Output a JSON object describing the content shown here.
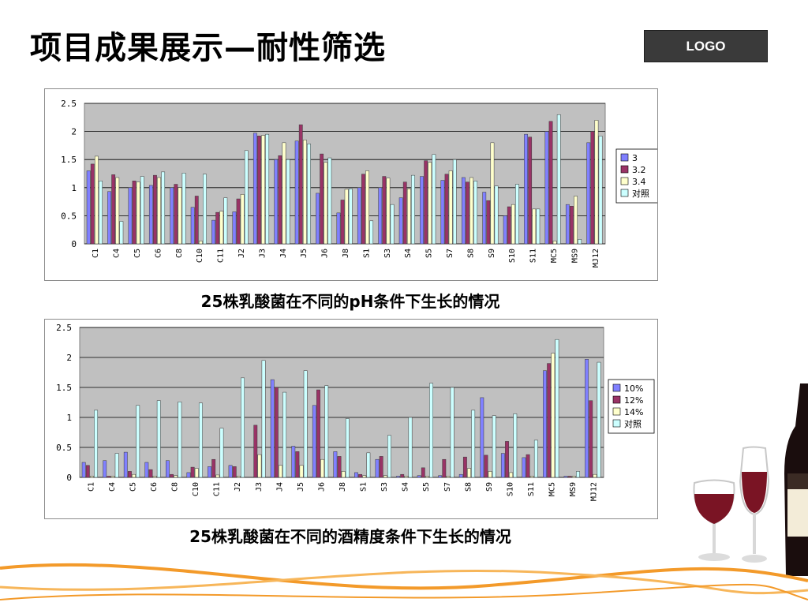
{
  "slide": {
    "title": "项目成果展示—耐性筛选",
    "logo": "LOGO"
  },
  "captions": {
    "ph": "25株乳酸菌在不同的pH条件下生长的情况",
    "alcohol": "25株乳酸菌在不同的酒精度条件下生长的情况"
  },
  "colors": {
    "series": [
      "#8080ff",
      "#993366",
      "#ffffcc",
      "#ccffff"
    ],
    "plot_bg": "#c0c0c0",
    "orange": "#f39a2a"
  },
  "chart_data": [
    {
      "type": "bar",
      "ylim": [
        0,
        2.5
      ],
      "yticks": [
        "0",
        "0.5",
        "1",
        "1.5",
        "2",
        "2.5"
      ],
      "legend_position": "right",
      "grid": true,
      "categories": [
        "C1",
        "C4",
        "C5",
        "C6",
        "C8",
        "C10",
        "C11",
        "J2",
        "J3",
        "J4",
        "J5",
        "J6",
        "J8",
        "S1",
        "S3",
        "S4",
        "S5",
        "S7",
        "S8",
        "S9",
        "S10",
        "S11",
        "MC5",
        "MS9",
        "MJ12"
      ],
      "series": [
        {
          "name": "3",
          "values": [
            1.3,
            0.93,
            1.0,
            1.04,
            1.0,
            0.65,
            0.42,
            0.57,
            1.97,
            1.5,
            1.83,
            0.9,
            0.55,
            1.0,
            1.0,
            0.82,
            1.2,
            1.13,
            1.18,
            0.92,
            0.5,
            1.95,
            2.0,
            0.7,
            1.8
          ]
        },
        {
          "name": "3.2",
          "values": [
            1.42,
            1.23,
            1.12,
            1.22,
            1.06,
            0.85,
            0.56,
            0.8,
            1.92,
            1.57,
            2.12,
            1.6,
            0.78,
            1.24,
            1.2,
            1.1,
            1.48,
            1.24,
            1.1,
            0.77,
            0.66,
            1.9,
            2.18,
            0.67,
            2.0
          ]
        },
        {
          "name": "3.4",
          "values": [
            1.56,
            1.18,
            1.1,
            1.18,
            1.0,
            0.05,
            0.58,
            0.88,
            1.93,
            1.8,
            1.85,
            1.45,
            0.97,
            1.3,
            1.17,
            0.98,
            1.45,
            1.3,
            1.18,
            1.8,
            0.7,
            0.62,
            0.05,
            0.85,
            2.2
          ]
        },
        {
          "name": "对照",
          "values": [
            1.12,
            0.4,
            1.2,
            1.28,
            1.26,
            1.24,
            0.82,
            1.66,
            1.95,
            1.5,
            1.78,
            1.53,
            0.98,
            0.41,
            0.7,
            1.22,
            1.59,
            1.5,
            1.12,
            1.03,
            1.06,
            0.62,
            2.3,
            0.08,
            1.92
          ]
        }
      ]
    },
    {
      "type": "bar",
      "ylim": [
        0,
        2.5
      ],
      "yticks": [
        "0",
        "0.5",
        "1",
        "1.5",
        "2",
        "2.5"
      ],
      "legend_position": "right",
      "grid": true,
      "categories": [
        "C1",
        "C4",
        "C5",
        "C6",
        "C8",
        "C10",
        "C11",
        "J2",
        "J3",
        "J4",
        "J5",
        "J6",
        "J8",
        "S1",
        "S3",
        "S4",
        "S5",
        "S7",
        "S8",
        "S9",
        "S10",
        "S11",
        "MC5",
        "MS9",
        "MJ12"
      ],
      "series": [
        {
          "name": "10%",
          "values": [
            0.25,
            0.28,
            0.42,
            0.25,
            0.28,
            0.08,
            0.18,
            0.2,
            0.0,
            1.63,
            0.52,
            1.2,
            0.43,
            0.08,
            0.3,
            0.02,
            0.03,
            0.03,
            0.05,
            1.33,
            0.4,
            0.33,
            1.78,
            0.02,
            1.97
          ]
        },
        {
          "name": "12%",
          "values": [
            0.2,
            0.02,
            0.1,
            0.13,
            0.05,
            0.17,
            0.3,
            0.18,
            0.87,
            1.5,
            0.43,
            1.46,
            0.35,
            0.05,
            0.35,
            0.05,
            0.16,
            0.3,
            0.34,
            0.37,
            0.6,
            0.38,
            1.9,
            0.02,
            1.28
          ]
        },
        {
          "name": "14%",
          "values": [
            0.02,
            0.02,
            0.05,
            0.02,
            0.03,
            0.15,
            0.04,
            0.02,
            0.38,
            0.2,
            0.2,
            0.3,
            0.1,
            0.03,
            0.03,
            0.02,
            0.02,
            0.02,
            0.15,
            0.1,
            0.08,
            0.02,
            2.07,
            0.02,
            0.05
          ]
        },
        {
          "name": "对照",
          "values": [
            1.12,
            0.4,
            1.2,
            1.28,
            1.26,
            1.24,
            0.82,
            1.66,
            1.95,
            1.42,
            1.78,
            1.53,
            0.98,
            0.41,
            0.7,
            1.0,
            1.57,
            1.5,
            1.12,
            1.03,
            1.06,
            0.62,
            2.3,
            0.1,
            1.92
          ]
        }
      ]
    }
  ]
}
